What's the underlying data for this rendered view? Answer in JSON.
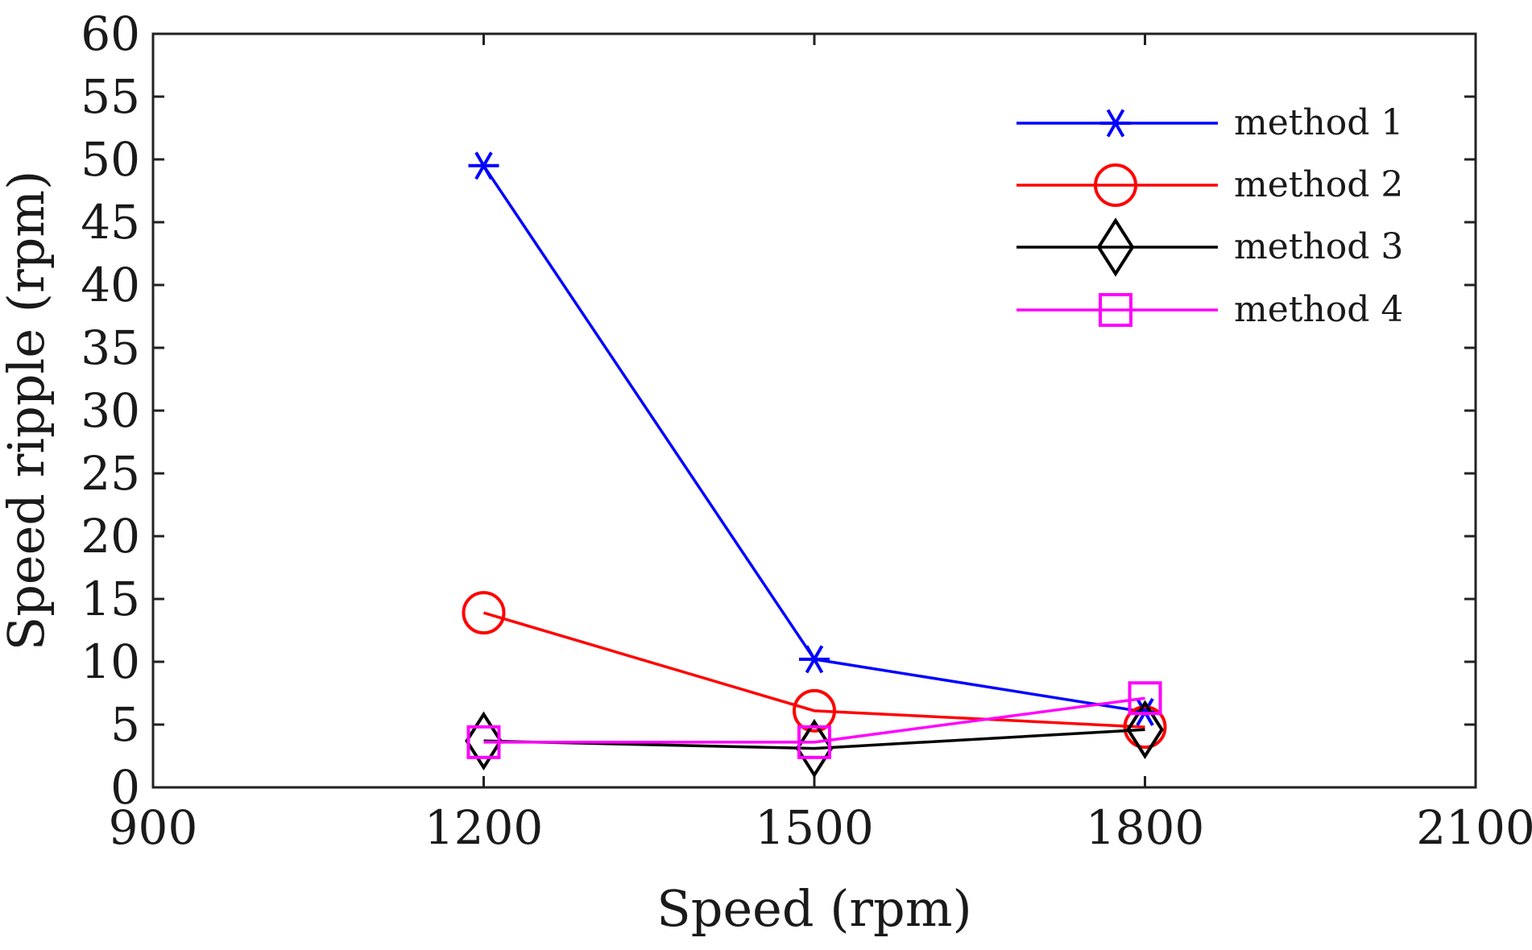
{
  "chart_data": {
    "type": "line",
    "title": "",
    "xlabel": "Speed (rpm)",
    "ylabel": "Speed ripple (rpm)",
    "xlim": [
      900,
      2100
    ],
    "ylim": [
      0,
      60
    ],
    "x_ticks": [
      900,
      1200,
      1500,
      1800,
      2100
    ],
    "y_ticks": [
      0,
      5,
      10,
      15,
      20,
      25,
      30,
      35,
      40,
      45,
      50,
      55,
      60
    ],
    "x": [
      1200,
      1500,
      1800
    ],
    "legend_position": "top-right",
    "grid": false,
    "series": [
      {
        "name": "method 1",
        "values": [
          49.5,
          10.2,
          6.0
        ],
        "color": "#0000ff",
        "marker": "asterisk"
      },
      {
        "name": "method 2",
        "values": [
          13.9,
          6.1,
          4.8
        ],
        "color": "#ff0000",
        "marker": "circle"
      },
      {
        "name": "method 3",
        "values": [
          3.7,
          3.1,
          4.6
        ],
        "color": "#000000",
        "marker": "diamond"
      },
      {
        "name": "method 4",
        "values": [
          3.6,
          3.6,
          7.1
        ],
        "color": "#ff00ff",
        "marker": "square"
      }
    ]
  }
}
